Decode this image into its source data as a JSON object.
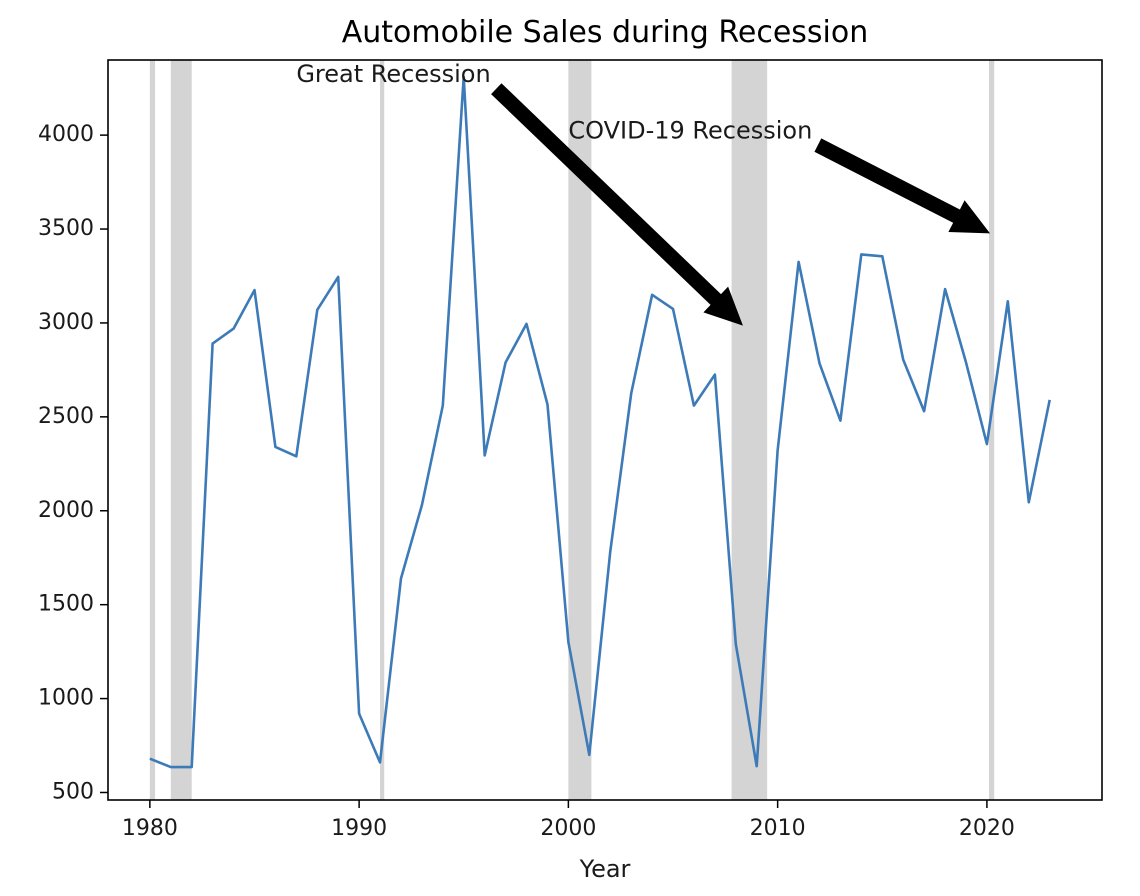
{
  "chart_data": {
    "type": "line",
    "title": "Automobile Sales during Recession",
    "xlabel": "Year",
    "ylabel": "",
    "xlim": [
      1978,
      2025.5
    ],
    "ylim": [
      460,
      4400
    ],
    "xticks": [
      1980,
      1990,
      2000,
      2010,
      2020
    ],
    "yticks": [
      500,
      1000,
      1500,
      2000,
      2500,
      3000,
      3500,
      4000
    ],
    "grid": false,
    "line_color": "#3d7ab8",
    "shade_color": "#d4d4d4",
    "recession_periods": [
      [
        1980.0,
        1980.25
      ],
      [
        1981.0,
        1982.0
      ],
      [
        1991.0,
        1991.2
      ],
      [
        2000.0,
        2001.1
      ],
      [
        2007.8,
        2009.5
      ],
      [
        2020.1,
        2020.35
      ]
    ],
    "series": [
      {
        "x": [
          1980,
          1981,
          1982,
          1983,
          1984,
          1985,
          1986,
          1987,
          1988,
          1989,
          1990,
          1991,
          1992,
          1993,
          1994,
          1995,
          1996,
          1997,
          1998,
          1999,
          2000,
          2001,
          2002,
          2003,
          2004,
          2005,
          2006,
          2007,
          2008,
          2009,
          2010,
          2011,
          2012,
          2013,
          2014,
          2015,
          2016,
          2017,
          2018,
          2019,
          2020,
          2021,
          2022,
          2023
        ],
        "values": [
          680,
          635,
          635,
          2890,
          2970,
          3175,
          2340,
          2290,
          3070,
          3245,
          920,
          660,
          1640,
          2030,
          2560,
          4310,
          2295,
          2790,
          2995,
          2565,
          1300,
          700,
          1780,
          2625,
          3150,
          3075,
          2560,
          2725,
          1290,
          640,
          2320,
          3325,
          2785,
          2480,
          3365,
          3355,
          2805,
          2530,
          3180,
          2790,
          2355,
          3115,
          2045,
          2590
        ]
      }
    ],
    "annotations": [
      {
        "text": "Great Recession",
        "text_x": 1987,
        "text_y": 4320,
        "arrow_x": 2008.3,
        "arrow_y": 2990
      },
      {
        "text": "COVID-19 Recession",
        "text_x": 2000,
        "text_y": 4020,
        "arrow_x": 2020.1,
        "arrow_y": 3480
      }
    ]
  }
}
